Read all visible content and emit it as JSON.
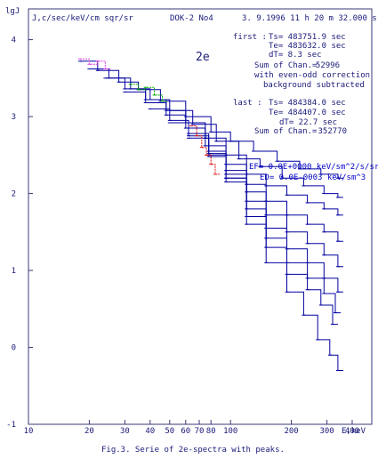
{
  "chart_data": {
    "type": "line",
    "title": "2e",
    "ylabel_axis": "lgJ",
    "ylabel": "J,c/sec/keV/cm sqr/sr",
    "xlabel": "E,keV",
    "x_scale": "log",
    "xlim": [
      10,
      500
    ],
    "ylim": [
      -1,
      4.4
    ],
    "x_ticks": [
      10,
      20,
      30,
      40,
      50,
      60,
      70,
      80,
      100,
      200,
      300,
      400
    ],
    "x_tick_labels": [
      "10",
      "20",
      "30",
      "40",
      "50",
      "60",
      "70",
      "80",
      "100",
      "200",
      "300",
      "400"
    ],
    "y_ticks": [
      -1,
      0,
      1,
      2,
      3,
      4
    ],
    "y_tick_labels": [
      "-1",
      "0",
      "1",
      "2",
      "3",
      "4"
    ],
    "grid": false,
    "header": {
      "device": "DOK-2 No4",
      "datetime": "3. 9.1996 11 h 20 m 32.000 s"
    },
    "first": {
      "label": "first :",
      "ts": "Ts=  483751.9 sec",
      "te": "Te=  483632.0 sec",
      "dt": "dT=     8.3 sec",
      "sum_label": "Sum of Chan.=",
      "sum_value": "52996",
      "note1": "with even-odd correction",
      "note2": "background subtracted"
    },
    "last": {
      "label": "last :",
      "ts": "Ts=  484384.0 sec",
      "te": "Te=  484407.0 sec",
      "dt": "dT=    22.7 sec",
      "sum_label": "Sum of Chan.=",
      "sum_value": "352770"
    },
    "parameters": {
      "ef": "EF= 0.0E+0000 keV/sm^2/s/sr",
      "ed": "ED= 0.0E-0003 keV/sm^3"
    },
    "caption": "Fig.3. Serie of 2e-spectra with peaks.",
    "colors": {
      "main": "#0000a0",
      "magenta": "#e040e0",
      "green": "#00aa00",
      "red": "#e01010",
      "text": "#1a1a7a"
    },
    "series": [
      {
        "color": "#0000a0",
        "x": [
          18,
          22,
          28,
          35,
          45,
          60,
          80,
          100,
          130,
          170,
          220,
          280,
          340
        ],
        "y": [
          3.72,
          3.6,
          3.45,
          3.35,
          3.2,
          3.0,
          2.8,
          2.68,
          2.55,
          2.42,
          2.32,
          2.25,
          2.2
        ]
      },
      {
        "color": "#0000a0",
        "x": [
          20,
          25,
          32,
          40,
          50,
          65,
          85,
          110,
          140,
          180,
          230,
          290,
          340
        ],
        "y": [
          3.62,
          3.5,
          3.36,
          3.22,
          3.08,
          2.9,
          2.68,
          2.45,
          2.35,
          2.2,
          2.1,
          2.0,
          1.95
        ]
      },
      {
        "color": "#0000a0",
        "x": [
          24,
          30,
          38,
          48,
          60,
          75,
          95,
          120,
          150,
          190,
          240,
          290,
          340
        ],
        "y": [
          3.5,
          3.36,
          3.22,
          3.08,
          2.92,
          2.72,
          2.5,
          2.25,
          2.1,
          1.98,
          1.88,
          1.8,
          1.72
        ]
      },
      {
        "color": "#0000a0",
        "x": [
          30,
          38,
          48,
          60,
          75,
          95,
          120,
          150,
          190,
          240,
          290,
          340
        ],
        "y": [
          3.32,
          3.18,
          3.02,
          2.85,
          2.62,
          2.38,
          2.12,
          1.9,
          1.72,
          1.6,
          1.5,
          1.38
        ]
      },
      {
        "color": "#0000a0",
        "x": [
          40,
          50,
          62,
          78,
          95,
          120,
          150,
          190,
          240,
          290,
          340
        ],
        "y": [
          3.1,
          2.95,
          2.78,
          2.55,
          2.3,
          2.02,
          1.72,
          1.5,
          1.35,
          1.2,
          1.05
        ]
      },
      {
        "color": "#0000a0",
        "x": [
          50,
          62,
          78,
          95,
          120,
          150,
          190,
          240,
          290,
          340
        ],
        "y": [
          2.92,
          2.75,
          2.52,
          2.25,
          1.9,
          1.55,
          1.28,
          1.1,
          0.9,
          0.72
        ]
      },
      {
        "color": "#0000a0",
        "x": [
          62,
          78,
          95,
          120,
          150,
          190,
          240,
          290,
          330
        ],
        "y": [
          2.72,
          2.48,
          2.2,
          1.8,
          1.42,
          1.1,
          0.9,
          0.7,
          0.45
        ]
      },
      {
        "color": "#0000a0",
        "x": [
          78,
          95,
          120,
          150,
          190,
          240,
          280,
          320
        ],
        "y": [
          2.5,
          2.15,
          1.7,
          1.3,
          0.95,
          0.75,
          0.55,
          0.3
        ]
      },
      {
        "color": "#0000a0",
        "x": [
          95,
          120,
          150,
          190,
          230,
          270,
          310,
          340
        ],
        "y": [
          2.2,
          1.6,
          1.1,
          0.72,
          0.42,
          0.1,
          -0.1,
          -0.3
        ]
      },
      {
        "color": "#e040e0",
        "x": [
          18,
          20,
          22,
          24
        ],
        "y": [
          3.75,
          3.68,
          3.72,
          3.62
        ]
      },
      {
        "color": "#00aa00",
        "x": [
          32,
          35,
          38,
          42,
          46
        ],
        "y": [
          3.42,
          3.35,
          3.38,
          3.28,
          3.2
        ]
      },
      {
        "color": "#e01010",
        "x": [
          64,
          68,
          72,
          76,
          80,
          84
        ],
        "y": [
          2.88,
          2.75,
          2.6,
          2.5,
          2.38,
          2.25
        ]
      }
    ]
  }
}
